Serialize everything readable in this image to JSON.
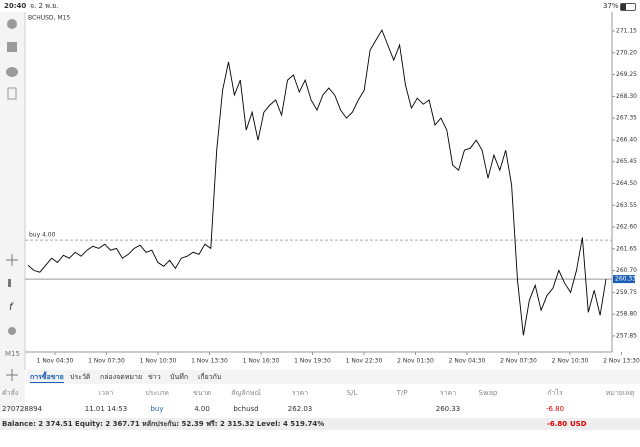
{
  "status_bar": {
    "time": "20:40",
    "date": "จ. 2 พ.ย.",
    "battery": "37%"
  },
  "chart": {
    "type": "line",
    "symbol": "BCHUSD, M15",
    "timeframe": "M15",
    "ylim": [
      257.15,
      271.98
    ],
    "yticks": [
      271.15,
      {
        "value": 270.2,
        "label": "270.20"
      },
      269.25,
      {
        "value": 268.3,
        "label": "268.30"
      },
      267.35,
      {
        "value": 266.4,
        "label": "266.40"
      },
      265.45,
      {
        "value": 264.5,
        "label": "264.50"
      },
      263.55,
      {
        "value": 262.6,
        "label": "262.60"
      },
      261.65,
      {
        "value": 260.7,
        "label": "260.70"
      },
      259.75,
      {
        "value": 258.8,
        "label": "258.80"
      },
      257.85
    ],
    "xticks": [
      "1 Nov 04:30",
      "1 Nov 07:30",
      "1 Nov 10:30",
      "1 Nov 13:30",
      "1 Nov 16:30",
      "1 Nov 19:30",
      "1 Nov 22:30",
      "2 Nov 01:30",
      "2 Nov 04:30",
      "2 Nov 07:30",
      "2 Nov 10:30",
      "2 Nov 13:30"
    ],
    "values": [
      260.93,
      260.71,
      260.63,
      260.93,
      261.24,
      261.06,
      261.37,
      261.24,
      261.5,
      261.33,
      261.59,
      261.76,
      261.67,
      261.85,
      261.59,
      261.67,
      261.24,
      261.41,
      261.67,
      261.81,
      261.5,
      261.59,
      261.06,
      260.89,
      261.15,
      260.8,
      261.24,
      261.33,
      261.5,
      261.41,
      261.85,
      261.67,
      265.95,
      268.57,
      269.8,
      268.36,
      269.01,
      266.83,
      267.61,
      266.39,
      267.61,
      267.92,
      268.14,
      267.48,
      269.01,
      269.23,
      268.49,
      269.01,
      268.14,
      267.7,
      268.36,
      268.66,
      268.36,
      267.7,
      267.35,
      267.61,
      268.14,
      268.57,
      270.32,
      270.76,
      271.19,
      270.54,
      269.88,
      270.54,
      268.79,
      267.79,
      268.22,
      267.96,
      268.14,
      267.05,
      267.35,
      266.83,
      265.3,
      265.08,
      265.95,
      266.04,
      266.39,
      265.95,
      264.73,
      265.74,
      265.08,
      265.95,
      264.43,
      260.28,
      257.88,
      259.4,
      260.06,
      258.97,
      259.62,
      259.93,
      260.71,
      260.15,
      259.75,
      260.71,
      262.15,
      258.88,
      259.84,
      258.75,
      260.33
    ],
    "order_line": {
      "label": "buy 4.00",
      "value": 262.03
    },
    "bid": 260.33,
    "color": "#000000"
  },
  "tabs": [
    "การซื้อขาย",
    "ประวัติ",
    "กล่องจดหมาย",
    "ข่าว",
    "บันทึก",
    "เกี่ยวกับ"
  ],
  "table": {
    "header": [
      "คำสั่ง",
      "เวลา",
      "ประเภท",
      "ขนาด",
      "สัญลักษณ์",
      "ราคา",
      "S/L",
      "T/P",
      "ราคา",
      "Swap",
      "กำไร",
      "หมายเหตุ"
    ],
    "rows": [
      [
        "270728894",
        "11.01 14:53",
        "buy",
        "4.00",
        "bchusd",
        "262.03",
        "",
        "",
        "260.33",
        "",
        "-6.80",
        ""
      ]
    ]
  },
  "footer": {
    "summary": "Balance: 2 374.51 Equity: 2 367.71 หลักประกัน: 52.39 ฟรี: 2 315.32 Level: 4 519.74%",
    "profit": "-6.80",
    "currency": "USD"
  }
}
